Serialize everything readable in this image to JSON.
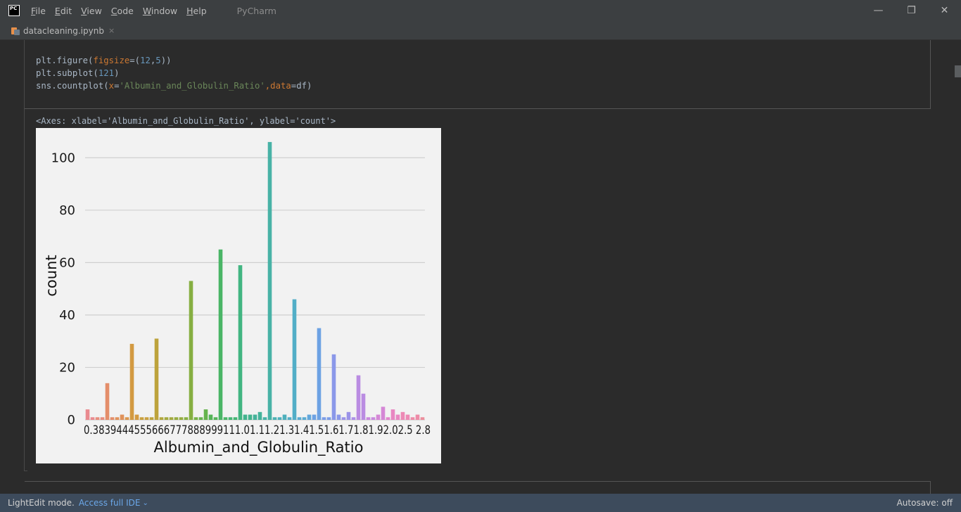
{
  "window": {
    "app_logo": "PC",
    "menu": [
      "File",
      "Edit",
      "View",
      "Code",
      "Window",
      "Help"
    ],
    "app_name": "PyCharm",
    "controls": {
      "minimize": "—",
      "restore": "❐",
      "close": "✕"
    }
  },
  "tab": {
    "label": "datacleaning.ipynb",
    "close": "×",
    "icon": "jupyter-notebook-icon"
  },
  "code": {
    "line1_a": "plt.figure(",
    "line1_param": "figsize",
    "line1_b": "=(",
    "line1_n1": "12",
    "line1_c": ",",
    "line1_n2": "5",
    "line1_d": "))",
    "line2_a": "plt.subplot(",
    "line2_n": "121",
    "line2_b": ")",
    "line3_a": "sns.countplot(",
    "line3_param1": "x",
    "line3_eq1": "=",
    "line3_str": "'Albumin_and_Globulin_Ratio'",
    "line3_comma": ",",
    "line3_param2": "data",
    "line3_eq2": "=df)"
  },
  "output": {
    "text": "<Axes: xlabel='Albumin_and_Globulin_Ratio', ylabel='count'>"
  },
  "chart_data": {
    "type": "bar",
    "title": "",
    "xlabel": "Albumin_and_Globulin_Ratio",
    "ylabel": "count",
    "ylim": [
      0,
      110
    ],
    "yticks": [
      0,
      20,
      40,
      60,
      80,
      100
    ],
    "grid": true,
    "xtick_text": "0.3839444555666777888999111.01.11.21.31.41.51.61.71.81.92.02.5 2.8",
    "values": [
      4,
      1,
      1,
      1,
      14,
      1,
      1,
      2,
      1,
      29,
      2,
      1,
      1,
      1,
      31,
      1,
      1,
      1,
      1,
      1,
      1,
      53,
      1,
      1,
      4,
      2,
      1,
      65,
      1,
      1,
      1,
      59,
      2,
      2,
      2,
      3,
      1,
      106,
      1,
      1,
      2,
      1,
      46,
      1,
      1,
      2,
      2,
      35,
      1,
      1,
      25,
      2,
      1,
      3,
      1,
      17,
      10,
      1,
      1,
      2,
      5,
      1,
      4,
      2,
      3,
      2,
      1,
      2,
      1
    ],
    "colors": [
      "#e98a8f",
      "#e78d7c",
      "#e48e6a",
      "#e0925a",
      "#da964d",
      "#d39a42",
      "#c9a03e",
      "#bda33c",
      "#b1a63c",
      "#a3a93d",
      "#95ac3f",
      "#86af42",
      "#76b146",
      "#65b34d",
      "#55b458",
      "#4ab566",
      "#44b573",
      "#42b581",
      "#43b48e",
      "#45b39a",
      "#48b2a6",
      "#4bb1b1",
      "#4eb0bc",
      "#52aec7",
      "#59abd2",
      "#62a7dc",
      "#6da2e3",
      "#7b9de7",
      "#8b98e9",
      "#9b93e8",
      "#ab8fe6",
      "#ba8ce2",
      "#c889dd",
      "#d587d6",
      "#e086cd",
      "#e887c2",
      "#ed89b5",
      "#ee8ba8",
      "#ec8d9c"
    ]
  },
  "status": {
    "mode": "LightEdit mode.",
    "link": "Access full IDE",
    "caret": "⌄",
    "autosave": "Autosave: off"
  }
}
